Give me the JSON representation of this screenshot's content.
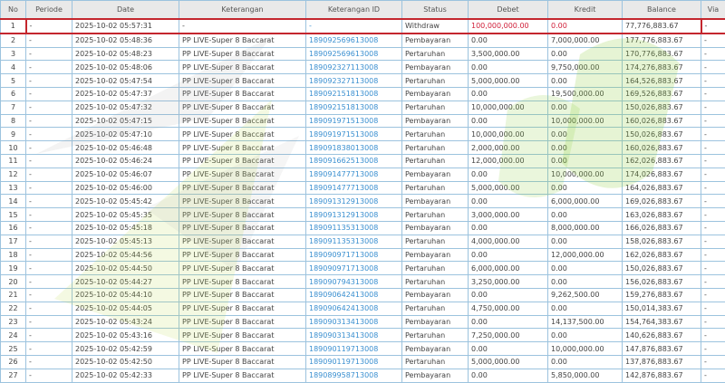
{
  "headers": [
    "No",
    "Periode",
    "Date",
    "Keterangan",
    "Keterangan ID",
    "Status",
    "Debet",
    "Kredit",
    "Balance",
    "Via"
  ],
  "colors": {
    "accent_link": "#3a8fd0",
    "highlight_border": "#c4262e",
    "withdraw_text": "#d0203a",
    "header_bg": "#e9e9e9"
  },
  "rows": [
    [
      "1",
      "-",
      "2025-10-02 05:57:31",
      "-",
      "-",
      "Withdraw",
      "100,000,000.00",
      "0.00",
      "77,776,883.67",
      "-"
    ],
    [
      "2",
      "-",
      "2025-10-02 05:48:36",
      "PP LIVE-Super 8 Baccarat",
      "189092569613008",
      "Pembayaran",
      "0.00",
      "7,000,000.00",
      "177,776,883.67",
      "-"
    ],
    [
      "3",
      "-",
      "2025-10-02 05:48:23",
      "PP LIVE-Super 8 Baccarat",
      "189092569613008",
      "Pertaruhan",
      "3,500,000.00",
      "0.00",
      "170,776,883.67",
      "-"
    ],
    [
      "4",
      "-",
      "2025-10-02 05:48:06",
      "PP LIVE-Super 8 Baccarat",
      "189092327113008",
      "Pembayaran",
      "0.00",
      "9,750,000.00",
      "174,276,883.67",
      "-"
    ],
    [
      "5",
      "-",
      "2025-10-02 05:47:54",
      "PP LIVE-Super 8 Baccarat",
      "189092327113008",
      "Pertaruhan",
      "5,000,000.00",
      "0.00",
      "164,526,883.67",
      "-"
    ],
    [
      "6",
      "-",
      "2025-10-02 05:47:37",
      "PP LIVE-Super 8 Baccarat",
      "189092151813008",
      "Pembayaran",
      "0.00",
      "19,500,000.00",
      "169,526,883.67",
      "-"
    ],
    [
      "7",
      "-",
      "2025-10-02 05:47:32",
      "PP LIVE-Super 8 Baccarat",
      "189092151813008",
      "Pertaruhan",
      "10,000,000.00",
      "0.00",
      "150,026,883.67",
      "-"
    ],
    [
      "8",
      "-",
      "2025-10-02 05:47:15",
      "PP LIVE-Super 8 Baccarat",
      "189091971513008",
      "Pembayaran",
      "0.00",
      "10,000,000.00",
      "160,026,883.67",
      "-"
    ],
    [
      "9",
      "-",
      "2025-10-02 05:47:10",
      "PP LIVE-Super 8 Baccarat",
      "189091971513008",
      "Pertaruhan",
      "10,000,000.00",
      "0.00",
      "150,026,883.67",
      "-"
    ],
    [
      "10",
      "-",
      "2025-10-02 05:46:48",
      "PP LIVE-Super 8 Baccarat",
      "189091838013008",
      "Pertaruhan",
      "2,000,000.00",
      "0.00",
      "160,026,883.67",
      "-"
    ],
    [
      "11",
      "-",
      "2025-10-02 05:46:24",
      "PP LIVE-Super 8 Baccarat",
      "189091662513008",
      "Pertaruhan",
      "12,000,000.00",
      "0.00",
      "162,026,883.67",
      "-"
    ],
    [
      "12",
      "-",
      "2025-10-02 05:46:07",
      "PP LIVE-Super 8 Baccarat",
      "189091477713008",
      "Pembayaran",
      "0.00",
      "10,000,000.00",
      "174,026,883.67",
      "-"
    ],
    [
      "13",
      "-",
      "2025-10-02 05:46:00",
      "PP LIVE-Super 8 Baccarat",
      "189091477713008",
      "Pertaruhan",
      "5,000,000.00",
      "0.00",
      "164,026,883.67",
      "-"
    ],
    [
      "14",
      "-",
      "2025-10-02 05:45:42",
      "PP LIVE-Super 8 Baccarat",
      "189091312913008",
      "Pembayaran",
      "0.00",
      "6,000,000.00",
      "169,026,883.67",
      "-"
    ],
    [
      "15",
      "-",
      "2025-10-02 05:45:35",
      "PP LIVE-Super 8 Baccarat",
      "189091312913008",
      "Pertaruhan",
      "3,000,000.00",
      "0.00",
      "163,026,883.67",
      "-"
    ],
    [
      "16",
      "-",
      "2025-10-02 05:45:18",
      "PP LIVE-Super 8 Baccarat",
      "189091135313008",
      "Pembayaran",
      "0.00",
      "8,000,000.00",
      "166,026,883.67",
      "-"
    ],
    [
      "17",
      "-",
      "2025-10-02 05:45:13",
      "PP LIVE-Super 8 Baccarat",
      "189091135313008",
      "Pertaruhan",
      "4,000,000.00",
      "0.00",
      "158,026,883.67",
      "-"
    ],
    [
      "18",
      "-",
      "2025-10-02 05:44:56",
      "PP LIVE-Super 8 Baccarat",
      "189090971713008",
      "Pembayaran",
      "0.00",
      "12,000,000.00",
      "162,026,883.67",
      "-"
    ],
    [
      "19",
      "-",
      "2025-10-02 05:44:50",
      "PP LIVE-Super 8 Baccarat",
      "189090971713008",
      "Pertaruhan",
      "6,000,000.00",
      "0.00",
      "150,026,883.67",
      "-"
    ],
    [
      "20",
      "-",
      "2025-10-02 05:44:27",
      "PP LIVE-Super 8 Baccarat",
      "189090794313008",
      "Pertaruhan",
      "3,250,000.00",
      "0.00",
      "156,026,883.67",
      "-"
    ],
    [
      "21",
      "-",
      "2025-10-02 05:44:10",
      "PP LIVE-Super 8 Baccarat",
      "189090642413008",
      "Pembayaran",
      "0.00",
      "9,262,500.00",
      "159,276,883.67",
      "-"
    ],
    [
      "22",
      "-",
      "2025-10-02 05:44:05",
      "PP LIVE-Super 8 Baccarat",
      "189090642413008",
      "Pertaruhan",
      "4,750,000.00",
      "0.00",
      "150,014,383.67",
      "-"
    ],
    [
      "23",
      "-",
      "2025-10-02 05:43:24",
      "PP LIVE-Super 8 Baccarat",
      "189090313413008",
      "Pembayaran",
      "0.00",
      "14,137,500.00",
      "154,764,383.67",
      "-"
    ],
    [
      "24",
      "-",
      "2025-10-02 05:43:16",
      "PP LIVE-Super 8 Baccarat",
      "189090313413008",
      "Pertaruhan",
      "7,250,000.00",
      "0.00",
      "140,626,883.67",
      "-"
    ],
    [
      "25",
      "-",
      "2025-10-02 05:42:59",
      "PP LIVE-Super 8 Baccarat",
      "189090119713008",
      "Pembayaran",
      "0.00",
      "10,000,000.00",
      "147,876,883.67",
      "-"
    ],
    [
      "26",
      "-",
      "2025-10-02 05:42:50",
      "PP LIVE-Super 8 Baccarat",
      "189090119713008",
      "Pertaruhan",
      "5,000,000.00",
      "0.00",
      "137,876,883.67",
      "-"
    ],
    [
      "27",
      "-",
      "2025-10-02 05:42:33",
      "PP LIVE-Super 8 Baccarat",
      "189089958713008",
      "Pembayaran",
      "0.00",
      "5,850,000.00",
      "142,876,883.67",
      "-"
    ]
  ]
}
